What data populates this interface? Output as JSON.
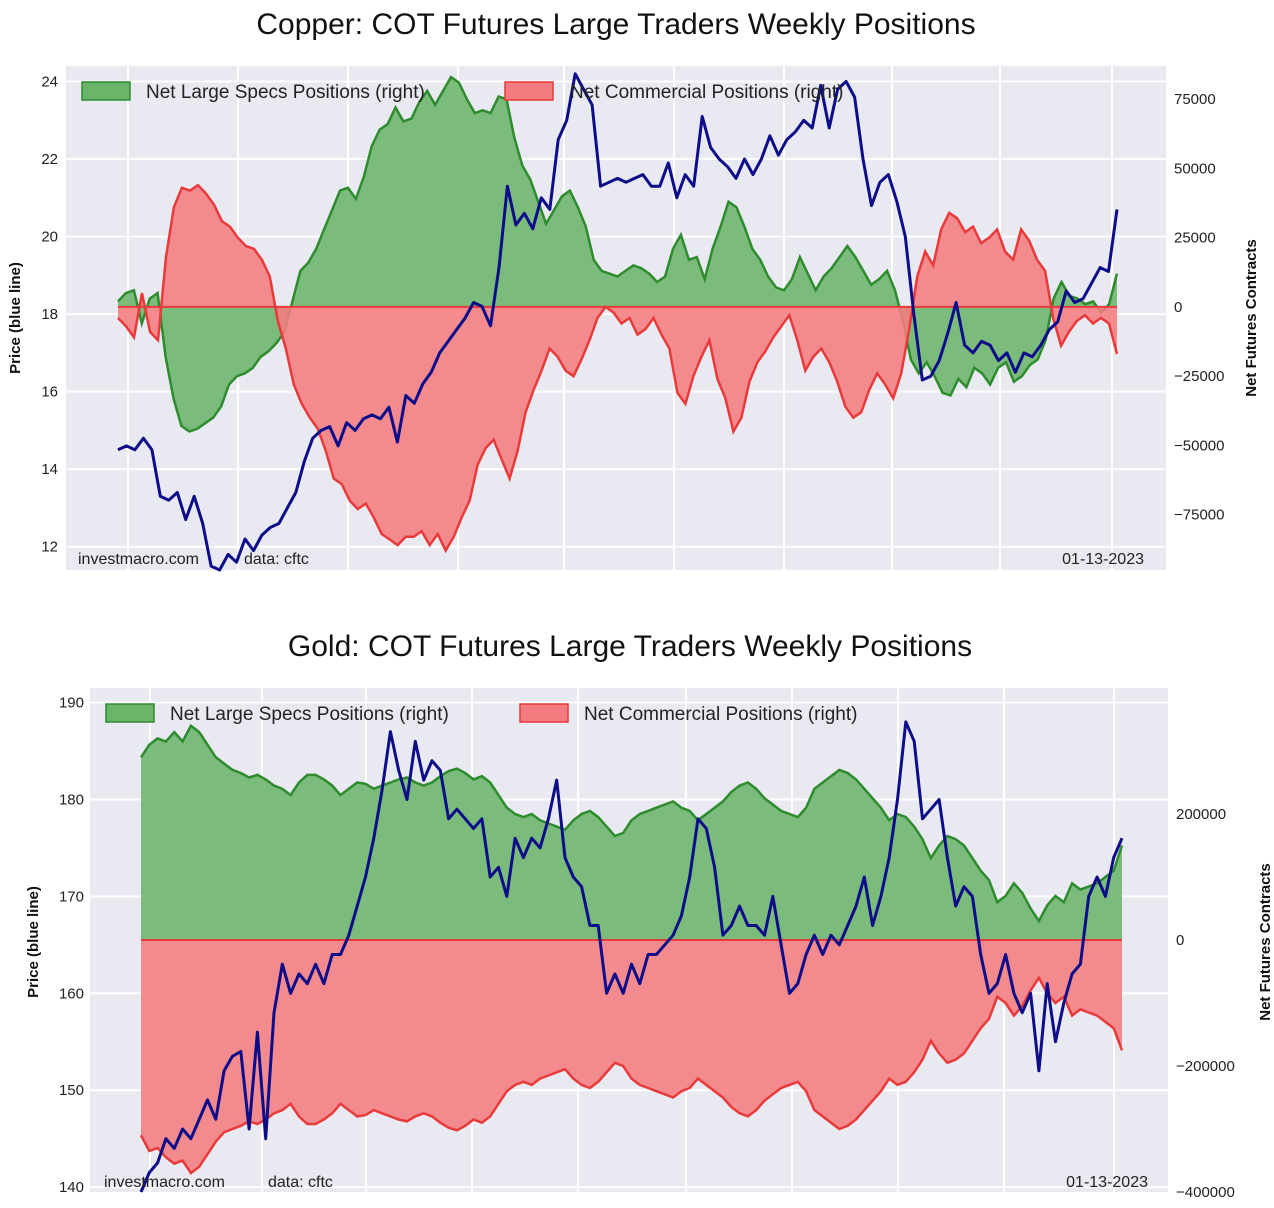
{
  "colors": {
    "plot_bg": "#e9e9f1",
    "grid": "#ffffff",
    "specs_fill": "#6bb56b",
    "specs_line": "#2e8b2e",
    "comm_fill": "#f47c80",
    "comm_line": "#e83a3a",
    "price_line": "#0d0d8a"
  },
  "chart_data": [
    {
      "type": "area",
      "title": "Copper: COT Futures Large Traders Weekly Positions",
      "ylabel": "Price (blue line)",
      "y2label": "Net Futures Contracts",
      "ylim": [
        11.4,
        24.4
      ],
      "y2lim": [
        -95000,
        87000
      ],
      "yticks": [
        "24",
        "22",
        "20",
        "18",
        "16",
        "14",
        "12"
      ],
      "y2ticks": [
        "75000",
        "50000",
        "25000",
        "0",
        "−25000",
        "−50000",
        "−75000"
      ],
      "grid": true,
      "legend_position": "top-left",
      "legend": [
        "Net Large Specs Positions (right)",
        "Net Commercial Positions (right)"
      ],
      "source": "investmacro.com",
      "data_source": "data: cftc",
      "date": "01-13-2023",
      "series": [
        {
          "name": "Net Large Specs Positions (right)",
          "axis": "right",
          "values": [
            2000,
            5000,
            6000,
            -6000,
            3000,
            5000,
            -18000,
            -33000,
            -43000,
            -45000,
            -44000,
            -42000,
            -40000,
            -36000,
            -28000,
            -25000,
            -24000,
            -22000,
            -18000,
            -16000,
            -13000,
            -9000,
            2000,
            13000,
            16000,
            21000,
            28000,
            35000,
            42000,
            43000,
            39000,
            47000,
            58000,
            64000,
            66000,
            72000,
            67000,
            68000,
            74000,
            78000,
            73000,
            78000,
            83000,
            81000,
            75000,
            70000,
            71000,
            70000,
            76000,
            75000,
            61000,
            51000,
            46000,
            38000,
            30000,
            35000,
            40000,
            42000,
            36000,
            29000,
            17000,
            13000,
            12000,
            11000,
            13000,
            15000,
            14000,
            12000,
            9000,
            11000,
            21000,
            26000,
            17000,
            18000,
            10000,
            21000,
            29000,
            38000,
            36000,
            29000,
            21000,
            17000,
            11000,
            7000,
            6000,
            10000,
            18000,
            12000,
            6000,
            11000,
            14000,
            18000,
            22000,
            18000,
            13000,
            8000,
            10000,
            13000,
            6000,
            -5000,
            -19000,
            -24000,
            -20000,
            -25000,
            -31000,
            -32000,
            -26000,
            -29000,
            -22000,
            -24000,
            -28000,
            -22000,
            -20000,
            -27000,
            -25000,
            -21000,
            -19000,
            -12000,
            3000,
            9000,
            4000,
            3000,
            1000,
            2000,
            -2000,
            1000,
            12000
          ]
        },
        {
          "name": "Net Commercial Positions (right)",
          "axis": "right",
          "values": [
            -4000,
            -7000,
            -11000,
            5000,
            -9000,
            -12000,
            18000,
            36000,
            43000,
            42000,
            44000,
            41000,
            37000,
            31000,
            29000,
            25000,
            22000,
            21000,
            17000,
            11000,
            -5000,
            -15000,
            -28000,
            -35000,
            -40000,
            -44000,
            -52000,
            -62000,
            -64000,
            -70000,
            -73000,
            -71000,
            -76000,
            -82000,
            -84000,
            -86000,
            -83000,
            -83000,
            -81000,
            -86000,
            -82000,
            -88000,
            -83000,
            -76000,
            -70000,
            -57000,
            -51000,
            -48000,
            -55000,
            -62000,
            -52000,
            -38000,
            -30000,
            -23000,
            -15000,
            -18000,
            -23000,
            -25000,
            -19000,
            -12000,
            -4000,
            0,
            -2000,
            -6000,
            -4000,
            -10000,
            -8000,
            -4000,
            -10000,
            -15000,
            -31000,
            -35000,
            -25000,
            -18000,
            -12000,
            -26000,
            -33000,
            -45000,
            -40000,
            -27000,
            -20000,
            -16000,
            -11000,
            -7000,
            -3000,
            -12000,
            -23000,
            -18000,
            -15000,
            -20000,
            -27000,
            -36000,
            -40000,
            -38000,
            -30000,
            -24000,
            -28000,
            -33000,
            -24000,
            -8000,
            11000,
            20000,
            15000,
            28000,
            34000,
            32000,
            27000,
            29000,
            23000,
            25000,
            28000,
            20000,
            17000,
            28000,
            24000,
            17000,
            13000,
            -4000,
            -14000,
            -9000,
            -5000,
            -3000,
            -6000,
            -4000,
            -6000,
            -17000
          ]
        },
        {
          "name": "price",
          "axis": "left",
          "values": [
            14.5,
            14.6,
            14.5,
            14.8,
            14.5,
            13.3,
            13.2,
            13.4,
            12.7,
            13.3,
            12.6,
            11.5,
            11.4,
            11.8,
            11.6,
            12.2,
            11.9,
            12.3,
            12.5,
            12.6,
            13.0,
            13.4,
            14.2,
            14.8,
            15.0,
            15.1,
            14.6,
            15.2,
            15.0,
            15.3,
            15.4,
            15.3,
            15.6,
            14.7,
            15.9,
            15.7,
            16.2,
            16.5,
            17.0,
            17.3,
            17.6,
            17.9,
            18.3,
            18.2,
            17.7,
            19.2,
            21.3,
            20.3,
            20.6,
            20.2,
            21.0,
            20.7,
            22.5,
            23.0,
            24.2,
            23.8,
            23.4,
            21.3,
            21.4,
            21.5,
            21.4,
            21.5,
            21.6,
            21.3,
            21.3,
            21.9,
            21.0,
            21.6,
            21.3,
            23.1,
            22.3,
            22.0,
            21.8,
            21.5,
            22.0,
            21.6,
            22.0,
            22.6,
            22.1,
            22.5,
            22.7,
            23.0,
            22.8,
            23.9,
            22.8,
            23.8,
            24.0,
            23.6,
            22.0,
            20.8,
            21.4,
            21.6,
            20.9,
            20.0,
            18.0,
            16.3,
            16.4,
            16.8,
            17.5,
            18.3,
            17.2,
            17.0,
            17.3,
            17.2,
            16.8,
            17.0,
            16.5,
            17.0,
            16.9,
            17.2,
            17.6,
            17.8,
            18.6,
            18.3,
            18.4,
            18.8,
            19.2,
            19.1,
            20.7
          ]
        }
      ]
    },
    {
      "type": "area",
      "title": "Gold: COT Futures Large Traders Weekly Positions",
      "ylabel": "Price (blue line)",
      "y2label": "Net Futures Contracts",
      "ylim": [
        139.5,
        191.5
      ],
      "y2lim": [
        -400000,
        400000
      ],
      "yticks": [
        "190",
        "180",
        "170",
        "160",
        "150",
        "140"
      ],
      "y2ticks": [
        "200000",
        "0",
        "−200000",
        "−400000"
      ],
      "grid": true,
      "legend_position": "top-left",
      "legend": [
        "Net Large Specs Positions (right)",
        "Net Commercial Positions (right)"
      ],
      "source": "investmacro.com",
      "data_source": "data: cftc",
      "date": "01-13-2023",
      "series": [
        {
          "name": "Net Large Specs Positions (right)",
          "axis": "right",
          "values": [
            290000,
            310000,
            320000,
            315000,
            330000,
            315000,
            340000,
            330000,
            310000,
            290000,
            280000,
            270000,
            265000,
            258000,
            262000,
            255000,
            245000,
            240000,
            230000,
            250000,
            262000,
            262000,
            255000,
            245000,
            230000,
            240000,
            250000,
            248000,
            240000,
            245000,
            250000,
            255000,
            258000,
            250000,
            245000,
            250000,
            260000,
            268000,
            272000,
            265000,
            255000,
            260000,
            250000,
            230000,
            210000,
            200000,
            195000,
            200000,
            190000,
            185000,
            180000,
            175000,
            190000,
            200000,
            205000,
            195000,
            180000,
            165000,
            170000,
            190000,
            200000,
            205000,
            210000,
            215000,
            220000,
            210000,
            205000,
            190000,
            200000,
            210000,
            220000,
            235000,
            245000,
            250000,
            240000,
            225000,
            215000,
            205000,
            200000,
            195000,
            210000,
            240000,
            250000,
            260000,
            270000,
            265000,
            255000,
            240000,
            225000,
            210000,
            190000,
            200000,
            195000,
            180000,
            160000,
            130000,
            150000,
            165000,
            160000,
            150000,
            130000,
            110000,
            95000,
            60000,
            70000,
            90000,
            75000,
            50000,
            30000,
            55000,
            70000,
            60000,
            90000,
            80000,
            85000,
            90000,
            100000,
            110000,
            150000
          ]
        },
        {
          "name": "Net Commercial Positions (right)",
          "axis": "right",
          "values": [
            -310000,
            -335000,
            -330000,
            -345000,
            -355000,
            -350000,
            -370000,
            -360000,
            -340000,
            -320000,
            -305000,
            -300000,
            -295000,
            -288000,
            -292000,
            -285000,
            -275000,
            -270000,
            -260000,
            -280000,
            -292000,
            -292000,
            -285000,
            -275000,
            -260000,
            -270000,
            -280000,
            -278000,
            -270000,
            -275000,
            -280000,
            -285000,
            -288000,
            -280000,
            -275000,
            -280000,
            -290000,
            -298000,
            -302000,
            -295000,
            -285000,
            -290000,
            -280000,
            -260000,
            -240000,
            -230000,
            -225000,
            -230000,
            -220000,
            -215000,
            -210000,
            -205000,
            -220000,
            -230000,
            -235000,
            -225000,
            -210000,
            -195000,
            -200000,
            -220000,
            -230000,
            -235000,
            -240000,
            -245000,
            -250000,
            -240000,
            -235000,
            -220000,
            -230000,
            -240000,
            -250000,
            -265000,
            -275000,
            -280000,
            -270000,
            -255000,
            -245000,
            -235000,
            -230000,
            -225000,
            -240000,
            -270000,
            -280000,
            -290000,
            -300000,
            -295000,
            -285000,
            -270000,
            -255000,
            -240000,
            -220000,
            -230000,
            -225000,
            -210000,
            -190000,
            -160000,
            -180000,
            -195000,
            -190000,
            -180000,
            -160000,
            -140000,
            -125000,
            -90000,
            -100000,
            -120000,
            -105000,
            -80000,
            -60000,
            -85000,
            -100000,
            -90000,
            -120000,
            -110000,
            -115000,
            -120000,
            -130000,
            -140000,
            -175000
          ]
        },
        {
          "name": "price",
          "axis": "left",
          "values": [
            139.5,
            141.5,
            142.5,
            145,
            144,
            146,
            145,
            147,
            149,
            147,
            152,
            153.5,
            154,
            146,
            156,
            145,
            158,
            163,
            160,
            162,
            161,
            163,
            161,
            164,
            164,
            166,
            169,
            172,
            176,
            181,
            187,
            183,
            180,
            186,
            182,
            184,
            183,
            178,
            179,
            178,
            177,
            178,
            172,
            173,
            170,
            176,
            174,
            176,
            175,
            178,
            182,
            174,
            172,
            171,
            167,
            167,
            160,
            162,
            160,
            163,
            161,
            164,
            164,
            165,
            166,
            168,
            172,
            178,
            177,
            173,
            166,
            167,
            169,
            167,
            167,
            166,
            170,
            165,
            160,
            161,
            164,
            166,
            164,
            166,
            165,
            167,
            169,
            172,
            167,
            170,
            174,
            180,
            188,
            186,
            178,
            179,
            180,
            174,
            169,
            171,
            170,
            164,
            160,
            161,
            164,
            160,
            158,
            160,
            152,
            161,
            155,
            159,
            162,
            163,
            170,
            172,
            170,
            174,
            176
          ]
        }
      ]
    }
  ]
}
